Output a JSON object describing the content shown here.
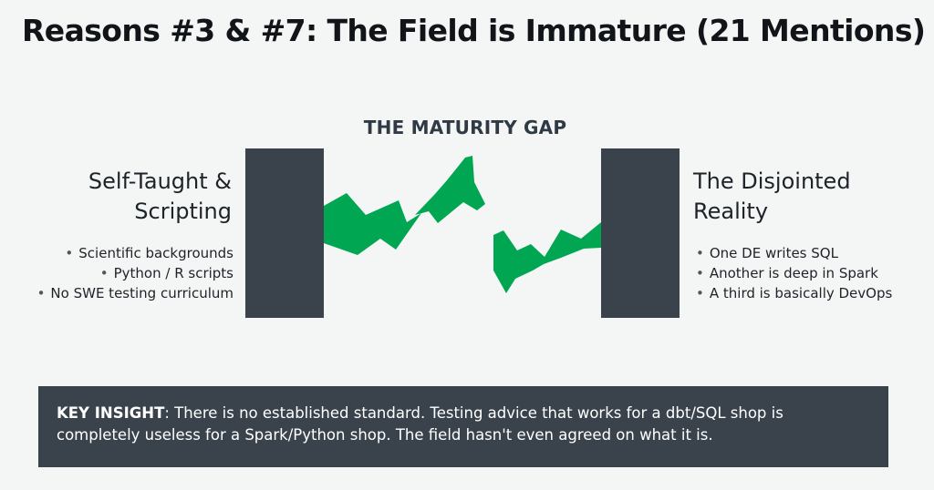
{
  "title": "Reasons #3 & #7: The Field is Immature (21 Mentions)",
  "gap_label": "THE MATURITY GAP",
  "left": {
    "title_line1": "Self-Taught &",
    "title_line2": "Scripting",
    "bullets": [
      "Scientific backgrounds",
      "Python / R scripts",
      "No SWE testing curriculum"
    ]
  },
  "right": {
    "title_line1": "The Disjointed",
    "title_line2": "Reality",
    "bullets": [
      "One DE writes SQL",
      "Another is deep in Spark",
      "A third is basically DevOps"
    ]
  },
  "insight": {
    "label": "KEY INSIGHT",
    "text": ": There is no established standard. Testing advice that works for a dbt/SQL shop is completely useless for a Spark/Python shop.  The field hasn't even agreed on what it is."
  },
  "colors": {
    "pillar": "#3a434c",
    "crack": "#00a651",
    "insight_bg": "#3a434c"
  }
}
